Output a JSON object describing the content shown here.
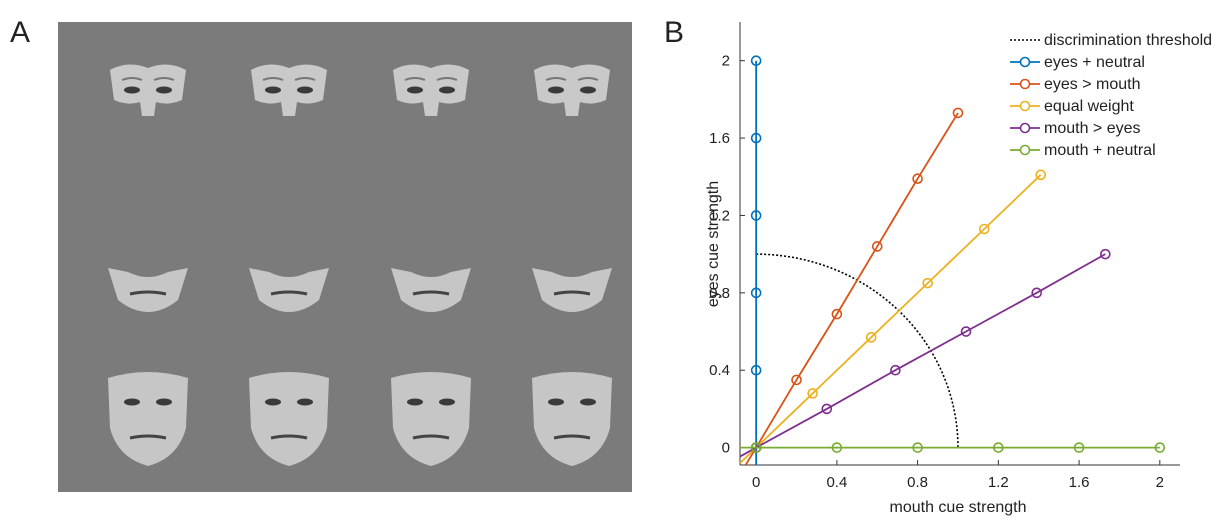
{
  "panel_labels": [
    "A",
    "B"
  ],
  "chart_data": {
    "type": "line",
    "xlabel": "mouth cue strength",
    "ylabel": "eyes cue strength",
    "xlim": [
      -0.08,
      2.1
    ],
    "ylim": [
      -0.09,
      2.2
    ],
    "xticks": [
      0,
      0.4,
      0.8,
      1.2,
      1.6,
      2
    ],
    "yticks": [
      0,
      0.4,
      0.8,
      1.2,
      1.6,
      2
    ],
    "legend": "upper right",
    "threshold": {
      "name": "discrimination threshold",
      "radius": 1,
      "color": "#000000"
    },
    "series": [
      {
        "name": "eyes + neutral",
        "color": "#0072bd",
        "x": [
          0,
          0,
          0,
          0,
          0,
          0
        ],
        "y": [
          0,
          0.4,
          0.8,
          1.2,
          1.6,
          2
        ]
      },
      {
        "name": "eyes > mouth",
        "color": "#d95319",
        "x": [
          0,
          0.2,
          0.4,
          0.6,
          0.8,
          1.0
        ],
        "y": [
          0,
          0.35,
          0.69,
          1.04,
          1.39,
          1.73
        ]
      },
      {
        "name": "equal weight",
        "color": "#edb120",
        "x": [
          0,
          0.28,
          0.57,
          0.85,
          1.13,
          1.41
        ],
        "y": [
          0,
          0.28,
          0.57,
          0.85,
          1.13,
          1.41
        ]
      },
      {
        "name": "mouth > eyes",
        "color": "#7e2f8e",
        "x": [
          0,
          0.35,
          0.69,
          1.04,
          1.39,
          1.73
        ],
        "y": [
          0,
          0.2,
          0.4,
          0.6,
          0.8,
          1.0
        ]
      },
      {
        "name": "mouth + neutral",
        "color": "#77ac30",
        "x": [
          0,
          0.4,
          0.8,
          1.2,
          1.6,
          2
        ],
        "y": [
          0,
          0,
          0,
          0,
          0,
          0
        ]
      }
    ]
  }
}
